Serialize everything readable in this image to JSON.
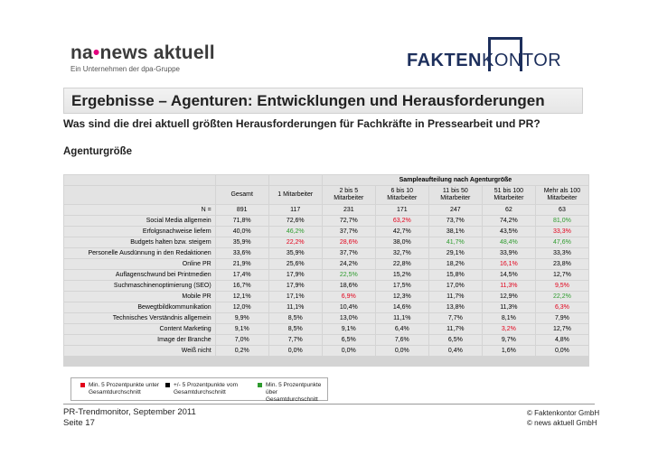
{
  "logos": {
    "left_brand_a": "na",
    "left_brand_b": "news aktuell",
    "left_tag": "Ein Unternehmen der dpa-Gruppe",
    "right_a": "FAKTEN",
    "right_b": "KONTOR"
  },
  "title": "Ergebnisse – Agenturen: Entwicklungen und Herausforderungen",
  "question": "Was sind die drei aktuell größten Herausforderungen für Fachkräfte in Pressearbeit und PR?",
  "subtitle": "Agenturgröße",
  "table": {
    "superheader": "Sampleaufteilung nach Agenturgröße",
    "columns": [
      "Gesamt",
      "1 Mitarbeiter",
      "2 bis 5 Mitarbeiter",
      "6 bis 10 Mitarbeiter",
      "11 bis 50 Mitarbeiter",
      "51 bis 100 Mitarbeiter",
      "Mehr als 100 Mitarbeiter"
    ],
    "n_label": "N =",
    "n_values": [
      "891",
      "117",
      "231",
      "171",
      "247",
      "62",
      "63"
    ],
    "rows": [
      {
        "label": "Social Media allgemein",
        "values": [
          "71,8%",
          "72,6%",
          "72,7%",
          "63,2%",
          "73,7%",
          "74,2%",
          "81,0%"
        ],
        "colors": [
          "black",
          "black",
          "black",
          "red",
          "black",
          "black",
          "green"
        ]
      },
      {
        "label": "Erfolgsnachweise liefern",
        "values": [
          "40,0%",
          "46,2%",
          "37,7%",
          "42,7%",
          "38,1%",
          "43,5%",
          "33,3%"
        ],
        "colors": [
          "black",
          "green",
          "black",
          "black",
          "black",
          "black",
          "red"
        ]
      },
      {
        "label": "Budgets halten bzw. steigern",
        "values": [
          "35,9%",
          "22,2%",
          "28,6%",
          "38,0%",
          "41,7%",
          "48,4%",
          "47,6%"
        ],
        "colors": [
          "black",
          "red",
          "red",
          "black",
          "green",
          "green",
          "green"
        ]
      },
      {
        "label": "Personelle Ausdünnung in den Redaktionen",
        "values": [
          "33,6%",
          "35,9%",
          "37,7%",
          "32,7%",
          "29,1%",
          "33,9%",
          "33,3%"
        ],
        "colors": [
          "black",
          "black",
          "black",
          "black",
          "black",
          "black",
          "black"
        ]
      },
      {
        "label": "Online PR",
        "values": [
          "21,9%",
          "25,6%",
          "24,2%",
          "22,8%",
          "18,2%",
          "16,1%",
          "23,8%"
        ],
        "colors": [
          "black",
          "black",
          "black",
          "black",
          "black",
          "red",
          "black"
        ]
      },
      {
        "label": "Auflagenschwund bei Printmedien",
        "values": [
          "17,4%",
          "17,9%",
          "22,5%",
          "15,2%",
          "15,8%",
          "14,5%",
          "12,7%"
        ],
        "colors": [
          "black",
          "black",
          "green",
          "black",
          "black",
          "black",
          "black"
        ]
      },
      {
        "label": "Suchmaschinenoptimierung (SEO)",
        "values": [
          "16,7%",
          "17,9%",
          "18,6%",
          "17,5%",
          "17,0%",
          "11,3%",
          "9,5%"
        ],
        "colors": [
          "black",
          "black",
          "black",
          "black",
          "black",
          "red",
          "red"
        ]
      },
      {
        "label": "Mobile PR",
        "values": [
          "12,1%",
          "17,1%",
          "6,9%",
          "12,3%",
          "11,7%",
          "12,9%",
          "22,2%"
        ],
        "colors": [
          "black",
          "black",
          "red",
          "black",
          "black",
          "black",
          "green"
        ]
      },
      {
        "label": "Bewegtbildkommunikation",
        "values": [
          "12,0%",
          "11,1%",
          "10,4%",
          "14,6%",
          "13,8%",
          "11,3%",
          "6,3%"
        ],
        "colors": [
          "black",
          "black",
          "black",
          "black",
          "black",
          "black",
          "red"
        ]
      },
      {
        "label": "Technisches Verständnis allgemein",
        "values": [
          "9,9%",
          "8,5%",
          "13,0%",
          "11,1%",
          "7,7%",
          "8,1%",
          "7,9%"
        ],
        "colors": [
          "black",
          "black",
          "black",
          "black",
          "black",
          "black",
          "black"
        ]
      },
      {
        "label": "Content Marketing",
        "values": [
          "9,1%",
          "8,5%",
          "9,1%",
          "6,4%",
          "11,7%",
          "3,2%",
          "12,7%"
        ],
        "colors": [
          "black",
          "black",
          "black",
          "black",
          "black",
          "red",
          "black"
        ]
      },
      {
        "label": "Image der Branche",
        "values": [
          "7,0%",
          "7,7%",
          "6,5%",
          "7,6%",
          "6,5%",
          "9,7%",
          "4,8%"
        ],
        "colors": [
          "black",
          "black",
          "black",
          "black",
          "black",
          "black",
          "black"
        ]
      },
      {
        "label": "Weiß nicht",
        "values": [
          "0,2%",
          "0,0%",
          "0,0%",
          "0,0%",
          "0,4%",
          "1,6%",
          "0,0%"
        ],
        "colors": [
          "black",
          "black",
          "black",
          "black",
          "black",
          "black",
          "black"
        ]
      }
    ]
  },
  "legend": {
    "red": "Min. 5 Prozentpunkte unter Gesamtdurchschnitt",
    "black": "+/- 5 Prozentpunkte vom Gesamtdurchschnitt",
    "green": "Min. 5 Prozentpunkte über Gesamtdurchschnitt",
    "colors": {
      "red": "#e2001a",
      "black": "#000000",
      "green": "#2e9b2e"
    }
  },
  "footer": {
    "left_line1": "PR-Trendmonitor, September 2011",
    "left_line2": "Seite 17",
    "right_line1": "© Faktenkontor GmbH",
    "right_line2": "© news aktuell GmbH"
  }
}
